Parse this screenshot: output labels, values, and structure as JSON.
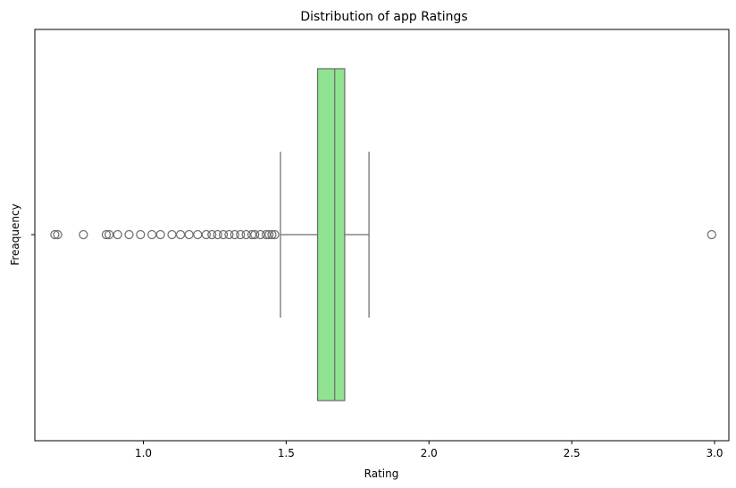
{
  "chart_data": {
    "type": "boxplot",
    "title": "Distribution of app Ratings",
    "xlabel": "Rating",
    "ylabel": "Freaquency",
    "xlim": [
      0.62,
      3.05
    ],
    "xticks": [
      1.0,
      1.5,
      2.0,
      2.5,
      3.0
    ],
    "xtick_labels": [
      "1.0",
      "1.5",
      "2.0",
      "2.5",
      "3.0"
    ],
    "ytick_labels": [
      ""
    ],
    "orientation": "horizontal",
    "box": {
      "q1": 1.61,
      "median": 1.67,
      "q3": 1.705,
      "whisker_low": 1.48,
      "whisker_high": 1.79
    },
    "outliers": [
      0.69,
      0.7,
      0.79,
      0.87,
      0.88,
      0.91,
      0.95,
      0.99,
      1.03,
      1.06,
      1.1,
      1.13,
      1.16,
      1.19,
      1.22,
      1.24,
      1.26,
      1.28,
      1.3,
      1.32,
      1.34,
      1.36,
      1.38,
      1.39,
      1.41,
      1.43,
      1.44,
      1.45,
      1.46,
      2.99
    ],
    "box_color": "#90e390",
    "line_color": "#6e6e6e",
    "grid": false
  }
}
